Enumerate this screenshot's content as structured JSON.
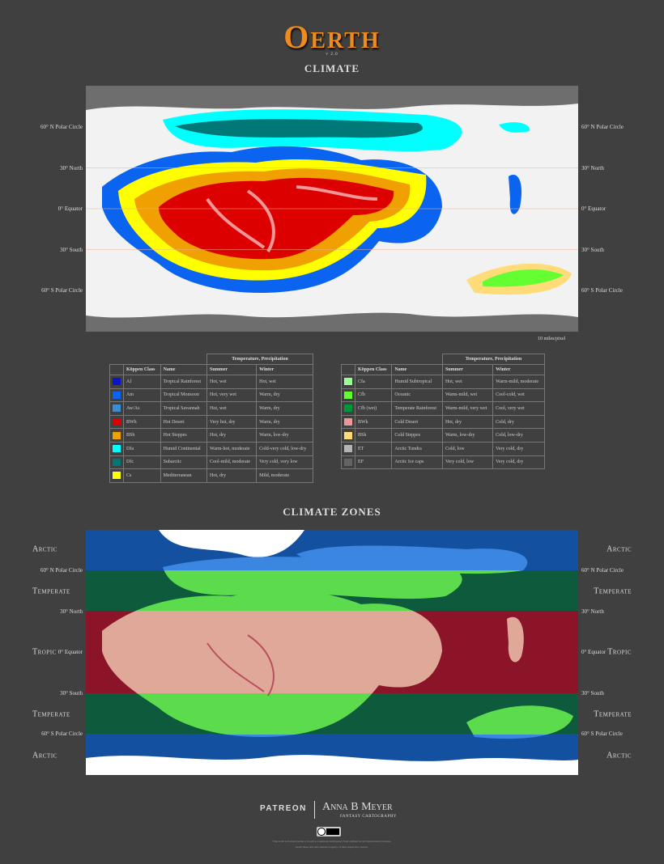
{
  "header": {
    "title": "Oerth",
    "version": "v 2.0"
  },
  "climate_map": {
    "heading": "CLIMATE",
    "latitudes": [
      "60° N Polar Circle",
      "30° North",
      "0° Equator",
      "30° South",
      "60° S Polar Circle"
    ],
    "scale": "10 miles/pixel"
  },
  "legend": {
    "group_header": "Temperature, Precipitation",
    "columns": [
      "Köppen Class",
      "Name",
      "Summer",
      "Winter"
    ],
    "tables": [
      {
        "rows": [
          {
            "color": "#0a14c8",
            "class": "Af",
            "name": "Tropical Rainforest",
            "summer": "Hot, wet",
            "winter": "Hot, wet"
          },
          {
            "color": "#0a64f0",
            "class": "Am",
            "name": "Tropical Monsoon",
            "summer": "Hot, very wet",
            "winter": "Warm, dry"
          },
          {
            "color": "#3c8cd2",
            "class": "Aw/As",
            "name": "Tropical Savannah",
            "summer": "Hot, wet",
            "winter": "Warm, dry"
          },
          {
            "color": "#dc0000",
            "class": "BWh",
            "name": "Hot Desert",
            "summer": "Very hot, dry",
            "winter": "Warm, dry"
          },
          {
            "color": "#f0a000",
            "class": "BSh",
            "name": "Hot Steppes",
            "summer": "Hot, dry",
            "winter": "Warm, low-dry"
          },
          {
            "color": "#00ffff",
            "class": "Dfa",
            "name": "Humid Continental",
            "summer": "Warm-hot, moderate",
            "winter": "Cold-very cold, low-dry"
          },
          {
            "color": "#007878",
            "class": "Dfc",
            "name": "Subarctic",
            "summer": "Cool-mild, moderate",
            "winter": "Very cold, very low"
          },
          {
            "color": "#ffff00",
            "class": "Cs",
            "name": "Mediterranean",
            "summer": "Hot, dry",
            "winter": "Mild, moderate"
          }
        ]
      },
      {
        "rows": [
          {
            "color": "#96ff96",
            "class": "Cfa",
            "name": "Humid Subtropical",
            "summer": "Hot, wet",
            "winter": "Warm-mild, moderate"
          },
          {
            "color": "#64ff32",
            "class": "Cfb",
            "name": "Oceanic",
            "summer": "Warm-mild, wet",
            "winter": "Cool-cold, wet"
          },
          {
            "color": "#00963c",
            "class": "Cfb (wet)",
            "name": "Temperate Rainforest",
            "summer": "Warm-mild, very wet",
            "winter": "Cool, very wet"
          },
          {
            "color": "#f09696",
            "class": "BWk",
            "name": "Cold Desert",
            "summer": "Hot, dry",
            "winter": "Cold, dry"
          },
          {
            "color": "#ffdc78",
            "class": "BSk",
            "name": "Cold Steppes",
            "summer": "Warm, low-dry",
            "winter": "Cold, low-dry"
          },
          {
            "color": "#b4b4b4",
            "class": "ET",
            "name": "Arctic Tundra",
            "summer": "Cold, low",
            "winter": "Very cold, dry"
          },
          {
            "color": "#646464",
            "class": "EF",
            "name": "Arctic Ice caps",
            "summer": "Very cold, low",
            "winter": "Very cold, dry"
          }
        ]
      }
    ]
  },
  "zones_map": {
    "heading": "CLIMATE ZONES",
    "zones": [
      "Arctic",
      "Temperate",
      "Tropic",
      "Temperate",
      "Arctic"
    ]
  },
  "footer": {
    "platform": "PATREON",
    "author": "Anna B Meyer",
    "tagline": "FANTASY CARTOGRAPHY",
    "license": "This work is licensed under a Creative Commons Attribution-NonCommercial 4.0 International License.",
    "note": "Oerth maps and data remain property of their respective owners."
  }
}
